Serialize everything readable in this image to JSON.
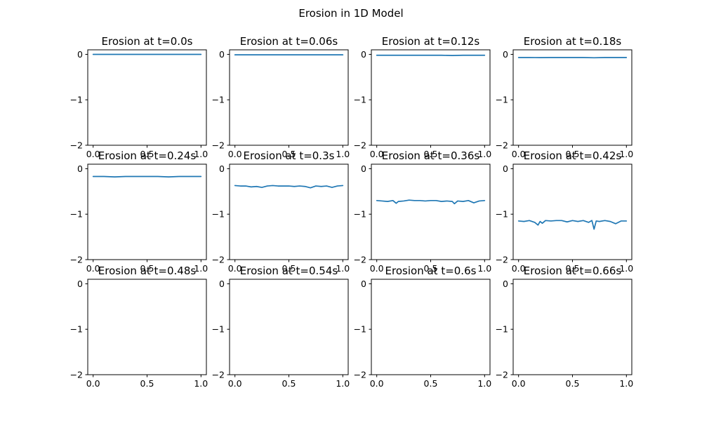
{
  "figure": {
    "suptitle": "Erosion in 1D Model",
    "line_color": "#1f77b4"
  },
  "chart_data": [
    {
      "type": "line",
      "title": "Erosion at t=0.0s",
      "xlim": [
        -0.05,
        1.05
      ],
      "ylim": [
        -2,
        0.1
      ],
      "x_ticks": [
        0.0,
        0.5,
        1.0
      ],
      "x_tick_labels": [
        "0.0",
        "0.5",
        "1.0"
      ],
      "y_ticks": [
        0,
        -1,
        -2
      ],
      "y_tick_labels": [
        "0",
        "−1",
        "−2"
      ],
      "grid": false,
      "series": [
        {
          "x": [
            0.0,
            0.1,
            0.2,
            0.3,
            0.4,
            0.5,
            0.6,
            0.7,
            0.8,
            0.9,
            1.0
          ],
          "y": [
            0.0,
            0.0,
            0.0,
            0.0,
            0.0,
            0.0,
            0.0,
            0.0,
            0.0,
            0.0,
            0.0
          ]
        }
      ]
    },
    {
      "type": "line",
      "title": "Erosion at t=0.06s",
      "xlim": [
        -0.05,
        1.05
      ],
      "ylim": [
        -2,
        0.1
      ],
      "x_ticks": [
        0.0,
        0.5,
        1.0
      ],
      "x_tick_labels": [
        "0.0",
        "0.5",
        "1.0"
      ],
      "y_ticks": [
        0,
        -1,
        -2
      ],
      "y_tick_labels": [
        "0",
        "−1",
        "−2"
      ],
      "grid": false,
      "series": [
        {
          "x": [
            0.0,
            0.1,
            0.2,
            0.3,
            0.4,
            0.5,
            0.6,
            0.7,
            0.8,
            0.9,
            1.0
          ],
          "y": [
            -0.01,
            -0.01,
            -0.01,
            -0.01,
            -0.01,
            -0.01,
            -0.01,
            -0.01,
            -0.01,
            -0.01,
            -0.01
          ]
        }
      ]
    },
    {
      "type": "line",
      "title": "Erosion at t=0.12s",
      "xlim": [
        -0.05,
        1.05
      ],
      "ylim": [
        -2,
        0.1
      ],
      "x_ticks": [
        0.0,
        0.5,
        1.0
      ],
      "x_tick_labels": [
        "0.0",
        "0.5",
        "1.0"
      ],
      "y_ticks": [
        0,
        -1,
        -2
      ],
      "y_tick_labels": [
        "0",
        "−1",
        "−2"
      ],
      "grid": false,
      "series": [
        {
          "x": [
            0.0,
            0.1,
            0.2,
            0.3,
            0.4,
            0.5,
            0.6,
            0.7,
            0.8,
            0.9,
            1.0
          ],
          "y": [
            -0.02,
            -0.02,
            -0.02,
            -0.02,
            -0.02,
            -0.02,
            -0.02,
            -0.025,
            -0.02,
            -0.02,
            -0.02
          ]
        }
      ]
    },
    {
      "type": "line",
      "title": "Erosion at t=0.18s",
      "xlim": [
        -0.05,
        1.05
      ],
      "ylim": [
        -2,
        0.1
      ],
      "x_ticks": [
        0.0,
        0.5,
        1.0
      ],
      "x_tick_labels": [
        "0.0",
        "0.5",
        "1.0"
      ],
      "y_ticks": [
        0,
        -1,
        -2
      ],
      "y_tick_labels": [
        "0",
        "−1",
        "−2"
      ],
      "grid": false,
      "series": [
        {
          "x": [
            0.0,
            0.1,
            0.2,
            0.3,
            0.4,
            0.5,
            0.6,
            0.7,
            0.8,
            0.9,
            1.0
          ],
          "y": [
            -0.07,
            -0.07,
            -0.072,
            -0.07,
            -0.07,
            -0.07,
            -0.07,
            -0.075,
            -0.07,
            -0.07,
            -0.07
          ]
        }
      ]
    },
    {
      "type": "line",
      "title": "Erosion at t=0.24s",
      "xlim": [
        -0.05,
        1.05
      ],
      "ylim": [
        -2,
        0.1
      ],
      "x_ticks": [
        0.0,
        0.5,
        1.0
      ],
      "x_tick_labels": [
        "0.0",
        "0.5",
        "1.0"
      ],
      "y_ticks": [
        0,
        -1,
        -2
      ],
      "y_tick_labels": [
        "0",
        "−1",
        "−2"
      ],
      "grid": false,
      "series": [
        {
          "x": [
            0.0,
            0.1,
            0.2,
            0.3,
            0.4,
            0.5,
            0.6,
            0.7,
            0.8,
            0.9,
            1.0
          ],
          "y": [
            -0.17,
            -0.17,
            -0.18,
            -0.17,
            -0.17,
            -0.17,
            -0.17,
            -0.18,
            -0.17,
            -0.17,
            -0.17
          ]
        }
      ]
    },
    {
      "type": "line",
      "title": "Erosion at t=0.3s",
      "xlim": [
        -0.05,
        1.05
      ],
      "ylim": [
        -2,
        0.1
      ],
      "x_ticks": [
        0.0,
        0.5,
        1.0
      ],
      "x_tick_labels": [
        "0.0",
        "0.5",
        "1.0"
      ],
      "y_ticks": [
        0,
        -1,
        -2
      ],
      "y_tick_labels": [
        "0",
        "−1",
        "−2"
      ],
      "grid": false,
      "series": [
        {
          "x": [
            0.0,
            0.05,
            0.1,
            0.15,
            0.2,
            0.25,
            0.3,
            0.35,
            0.4,
            0.45,
            0.5,
            0.55,
            0.6,
            0.65,
            0.7,
            0.75,
            0.8,
            0.85,
            0.9,
            0.95,
            1.0
          ],
          "y": [
            -0.37,
            -0.38,
            -0.38,
            -0.4,
            -0.39,
            -0.41,
            -0.38,
            -0.37,
            -0.38,
            -0.38,
            -0.38,
            -0.39,
            -0.38,
            -0.39,
            -0.42,
            -0.38,
            -0.39,
            -0.38,
            -0.41,
            -0.38,
            -0.37
          ]
        }
      ]
    },
    {
      "type": "line",
      "title": "Erosion at t=0.36s",
      "xlim": [
        -0.05,
        1.05
      ],
      "ylim": [
        -2,
        0.1
      ],
      "x_ticks": [
        0.0,
        0.5,
        1.0
      ],
      "x_tick_labels": [
        "0.0",
        "0.5",
        "1.0"
      ],
      "y_ticks": [
        0,
        -1,
        -2
      ],
      "y_tick_labels": [
        "0",
        "−1",
        "−2"
      ],
      "grid": false,
      "series": [
        {
          "x": [
            0.0,
            0.05,
            0.1,
            0.15,
            0.18,
            0.2,
            0.25,
            0.3,
            0.35,
            0.4,
            0.45,
            0.5,
            0.55,
            0.6,
            0.65,
            0.7,
            0.72,
            0.75,
            0.8,
            0.85,
            0.9,
            0.95,
            1.0
          ],
          "y": [
            -0.7,
            -0.71,
            -0.72,
            -0.7,
            -0.76,
            -0.72,
            -0.71,
            -0.69,
            -0.7,
            -0.7,
            -0.71,
            -0.7,
            -0.7,
            -0.72,
            -0.71,
            -0.72,
            -0.77,
            -0.71,
            -0.72,
            -0.7,
            -0.75,
            -0.71,
            -0.7
          ]
        }
      ]
    },
    {
      "type": "line",
      "title": "Erosion at t=0.42s",
      "xlim": [
        -0.05,
        1.05
      ],
      "ylim": [
        -2,
        0.1
      ],
      "x_ticks": [
        0.0,
        0.5,
        1.0
      ],
      "x_tick_labels": [
        "0.0",
        "0.5",
        "1.0"
      ],
      "y_ticks": [
        0,
        -1,
        -2
      ],
      "y_tick_labels": [
        "0",
        "−1",
        "−2"
      ],
      "grid": false,
      "series": [
        {
          "x": [
            0.0,
            0.05,
            0.1,
            0.15,
            0.18,
            0.2,
            0.22,
            0.25,
            0.3,
            0.35,
            0.4,
            0.45,
            0.5,
            0.55,
            0.6,
            0.65,
            0.68,
            0.7,
            0.72,
            0.75,
            0.8,
            0.85,
            0.9,
            0.95,
            1.0
          ],
          "y": [
            -1.15,
            -1.16,
            -1.14,
            -1.18,
            -1.24,
            -1.16,
            -1.2,
            -1.14,
            -1.15,
            -1.14,
            -1.14,
            -1.17,
            -1.14,
            -1.16,
            -1.14,
            -1.18,
            -1.14,
            -1.33,
            -1.15,
            -1.16,
            -1.14,
            -1.16,
            -1.21,
            -1.15,
            -1.15
          ]
        }
      ]
    },
    {
      "type": "line",
      "title": "Erosion at t=0.48s",
      "xlim": [
        -0.05,
        1.05
      ],
      "ylim": [
        -2,
        0.1
      ],
      "x_ticks": [
        0.0,
        0.5,
        1.0
      ],
      "x_tick_labels": [
        "0.0",
        "0.5",
        "1.0"
      ],
      "y_ticks": [
        0,
        -1,
        -2
      ],
      "y_tick_labels": [
        "0",
        "−1",
        "−2"
      ],
      "grid": false,
      "series": []
    },
    {
      "type": "line",
      "title": "Erosion at t=0.54s",
      "xlim": [
        -0.05,
        1.05
      ],
      "ylim": [
        -2,
        0.1
      ],
      "x_ticks": [
        0.0,
        0.5,
        1.0
      ],
      "x_tick_labels": [
        "0.0",
        "0.5",
        "1.0"
      ],
      "y_ticks": [
        0,
        -1,
        -2
      ],
      "y_tick_labels": [
        "0",
        "−1",
        "−2"
      ],
      "grid": false,
      "series": []
    },
    {
      "type": "line",
      "title": "Erosion at t=0.6s",
      "xlim": [
        -0.05,
        1.05
      ],
      "ylim": [
        -2,
        0.1
      ],
      "x_ticks": [
        0.0,
        0.5,
        1.0
      ],
      "x_tick_labels": [
        "0.0",
        "0.5",
        "1.0"
      ],
      "y_ticks": [
        0,
        -1,
        -2
      ],
      "y_tick_labels": [
        "0",
        "−1",
        "−2"
      ],
      "grid": false,
      "series": []
    },
    {
      "type": "line",
      "title": "Erosion at t=0.66s",
      "xlim": [
        -0.05,
        1.05
      ],
      "ylim": [
        -2,
        0.1
      ],
      "x_ticks": [
        0.0,
        0.5,
        1.0
      ],
      "x_tick_labels": [
        "0.0",
        "0.5",
        "1.0"
      ],
      "y_ticks": [
        0,
        -1,
        -2
      ],
      "y_tick_labels": [
        "0",
        "−1",
        "−2"
      ],
      "grid": false,
      "series": []
    }
  ]
}
